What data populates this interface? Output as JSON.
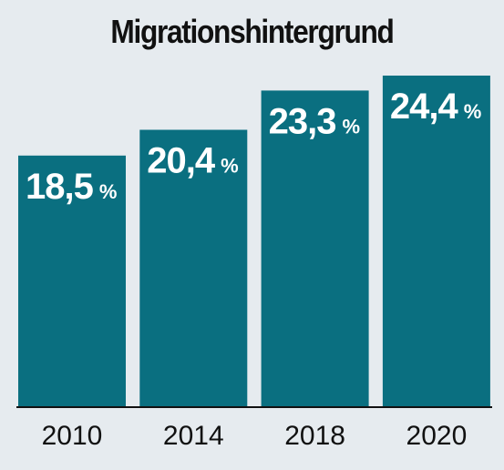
{
  "chart_data": {
    "type": "bar",
    "title": "Migrationshintergrund",
    "categories": [
      "2010",
      "2014",
      "2018",
      "2020"
    ],
    "values": [
      18.5,
      20.4,
      23.3,
      24.4
    ],
    "value_labels": [
      "18,5",
      "20,4",
      "23,3",
      "24,4"
    ],
    "unit": "%",
    "xlabel": "",
    "ylabel": "",
    "ylim": [
      0,
      24.4
    ],
    "grid": false,
    "legend": "none",
    "colors": {
      "bar": "#0a6f80",
      "label": "#ffffff",
      "background": "#e6ebef",
      "axis": "#111111"
    }
  }
}
